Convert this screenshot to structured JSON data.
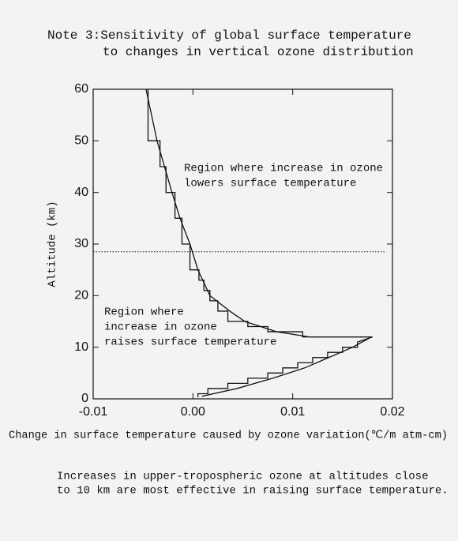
{
  "chart_data": {
    "type": "line",
    "title": [
      "Note 3:Sensitivity of global surface temperature",
      "to changes in vertical ozone distribution"
    ],
    "x_label": "Change in surface temperature caused by ozone variation(℃/m atm-cm)",
    "y_label": "Altitude (km)",
    "annotations": [
      [
        "Region where increase in ozone",
        "lowers surface temperature"
      ],
      [
        "Region where",
        "increase in ozone",
        "raises surface temperature"
      ]
    ],
    "caption": [
      "Increases in upper-tropospheric ozone at altitudes close",
      "to 10 km are most effective in raising surface temperature."
    ],
    "xlim": [
      -0.01,
      0.02
    ],
    "xticks": [
      {
        "value": -0.01,
        "label": "-0.01"
      },
      {
        "value": 0,
        "label": "0.00"
      },
      0.01,
      0.02
    ],
    "ylim": [
      0,
      60
    ],
    "yticks": [
      0,
      10,
      20,
      30,
      40,
      50,
      60
    ],
    "reference_line": 28.5,
    "series": [
      {
        "color": "#111111",
        "x": [
          -0.0047,
          -0.0036,
          -0.0021,
          -0.0013,
          -0.0003,
          0.0005,
          0.0017,
          0.0037,
          0.0052,
          0.0084,
          0.0117,
          0.0179,
          0.016,
          0.0136,
          0.0112,
          0.008,
          0.0044,
          0.0009
        ],
        "values": [
          60,
          50,
          40,
          35,
          30,
          25,
          20,
          17,
          15,
          13,
          12,
          12,
          10,
          8,
          6,
          4,
          2,
          0.5
        ]
      },
      {
        "color": "#111111",
        "x": [
          -0.0045,
          -0.0045,
          -0.0033,
          -0.0033,
          -0.0027,
          -0.0027,
          -0.0018,
          -0.0018,
          -0.0011,
          -0.0011,
          -0.0003,
          -0.0003,
          0.0006,
          0.0006,
          0.0011,
          0.0011,
          0.0017,
          0.0017,
          0.0025,
          0.0025,
          0.0035,
          0.0035,
          0.0055,
          0.0055,
          0.0075,
          0.0075,
          0.011,
          0.011,
          0.018,
          0.0165,
          0.0165,
          0.015,
          0.015,
          0.0135,
          0.0135,
          0.012,
          0.012,
          0.0105,
          0.0105,
          0.009,
          0.009,
          0.0075,
          0.0075,
          0.0055,
          0.0055,
          0.0035,
          0.0035,
          0.0015,
          0.0015,
          0.0005,
          0.0005
        ],
        "values": [
          60,
          50,
          50,
          45,
          45,
          40,
          40,
          35,
          35,
          30,
          30,
          25,
          25,
          23,
          23,
          21,
          21,
          19,
          19,
          17,
          17,
          15,
          15,
          14,
          14,
          13,
          13,
          12,
          12,
          11,
          10,
          10,
          9,
          9,
          8,
          8,
          7,
          7,
          6,
          6,
          5,
          5,
          4,
          4,
          3,
          3,
          2,
          2,
          1,
          1,
          0.3
        ]
      }
    ]
  }
}
